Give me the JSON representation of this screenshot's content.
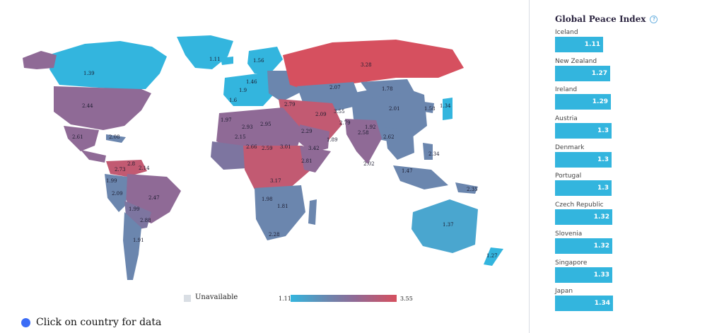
{
  "colors": {
    "low": "#33b5de",
    "mid_blue": "#6b86ae",
    "mid_purple": "#8f6a96",
    "high": "#d6505f",
    "unavailable": "#d9dee4",
    "hint_dot": "#3b6cf6"
  },
  "legend": {
    "unavailable_label": "Unavailable",
    "min": "1.11",
    "max": "3.55"
  },
  "hint": "Click on country for data",
  "sidebar": {
    "title": "Global Peace Index",
    "info_icon": "info-icon",
    "bar_scale_max": 1.34,
    "items": [
      {
        "name": "Iceland",
        "value": "1.11"
      },
      {
        "name": "New Zealand",
        "value": "1.27"
      },
      {
        "name": "Ireland",
        "value": "1.29"
      },
      {
        "name": "Austria",
        "value": "1.3"
      },
      {
        "name": "Denmark",
        "value": "1.3"
      },
      {
        "name": "Portugal",
        "value": "1.3"
      },
      {
        "name": "Czech Republic",
        "value": "1.32"
      },
      {
        "name": "Slovenia",
        "value": "1.32"
      },
      {
        "name": "Singapore",
        "value": "1.33"
      },
      {
        "name": "Japan",
        "value": "1.34"
      }
    ]
  },
  "map_labels": [
    "1.11",
    "1.39",
    "2.44",
    "2.61",
    "2.08",
    "2.8",
    "2.73",
    "2.14",
    "1.99",
    "2.09",
    "2.47",
    "1.99",
    "2.88",
    "1.91",
    "1.56",
    "1.6",
    "1.46",
    "1.9",
    "2.79",
    "2.09",
    "3.55",
    "2.79",
    "3.28",
    "2.07",
    "1.78",
    "2.01",
    "1.58",
    "1.34",
    "2.93",
    "2.95",
    "2.66",
    "2.59",
    "3.01",
    "2.81",
    "3.42",
    "3.17",
    "1.98",
    "1.81",
    "2.28",
    "2.02",
    "2.58",
    "2.34",
    "1.47",
    "1.37",
    "1.27",
    "2.35",
    "2.29",
    "1.89",
    "2.62",
    "1.97",
    "2.15",
    "1.92"
  ]
}
